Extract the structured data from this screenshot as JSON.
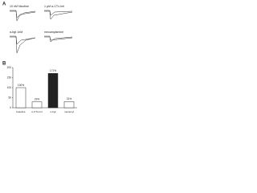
{
  "panel_a": {
    "label": "A",
    "traces": [
      {
        "label": "10 nM Nicotine"
      },
      {
        "label": "1 µM α-CTx-ImI"
      },
      {
        "label": "α-bgt 1nM"
      },
      {
        "label": "mecamylamine"
      }
    ]
  },
  "chart_data": {
    "type": "bar",
    "panel_label": "B",
    "categories": [
      "baseline",
      "α-CTx-ImI",
      "α-bgt",
      "mecamyl"
    ],
    "values": [
      100,
      29,
      171,
      31
    ],
    "value_labels": [
      "100%",
      "29%",
      "171%",
      "31%"
    ],
    "colors": [
      "#ffffff",
      "#ffffff",
      "#222222",
      "#ffffff"
    ],
    "ylim": [
      0,
      200
    ],
    "yticks": [
      0,
      50,
      100,
      150,
      200
    ],
    "grid": false
  }
}
